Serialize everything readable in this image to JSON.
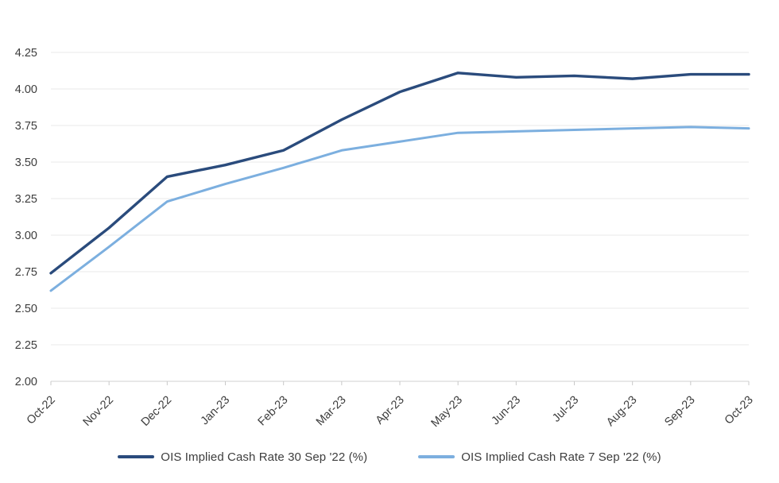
{
  "chart_data": {
    "type": "line",
    "title": "",
    "xlabel": "",
    "ylabel": "",
    "categories": [
      "Oct-22",
      "Nov-22",
      "Dec-22",
      "Jan-23",
      "Feb-23",
      "Mar-23",
      "Apr-23",
      "May-23",
      "Jun-23",
      "Jul-23",
      "Aug-23",
      "Sep-23",
      "Oct-23"
    ],
    "series": [
      {
        "name": "OIS Implied Cash Rate 30 Sep '22 (%)",
        "color": "#2A4B7C",
        "stroke_width": 3.4,
        "values": [
          2.74,
          3.05,
          3.4,
          3.48,
          3.58,
          3.79,
          3.98,
          4.11,
          4.08,
          4.09,
          4.07,
          4.1,
          4.1
        ]
      },
      {
        "name": "OIS Implied Cash Rate 7 Sep '22 (%)",
        "color": "#7CAFDF",
        "stroke_width": 3.0,
        "values": [
          2.62,
          2.92,
          3.23,
          3.35,
          3.46,
          3.58,
          3.64,
          3.7,
          3.71,
          3.72,
          3.73,
          3.74,
          3.73
        ]
      }
    ],
    "ylim": [
      2.0,
      4.25
    ],
    "y_tick_step": 0.25,
    "y_tick_labels": [
      "2.00",
      "2.25",
      "2.50",
      "2.75",
      "3.00",
      "3.25",
      "3.50",
      "3.75",
      "4.00",
      "4.25"
    ],
    "grid": true,
    "legend_position": "bottom",
    "colors": {
      "grid": "#E9E9E9",
      "axis": "#D9D9D9",
      "tick": "#C9C9C9",
      "label": "#3d3d3d",
      "background": "#ffffff"
    }
  }
}
